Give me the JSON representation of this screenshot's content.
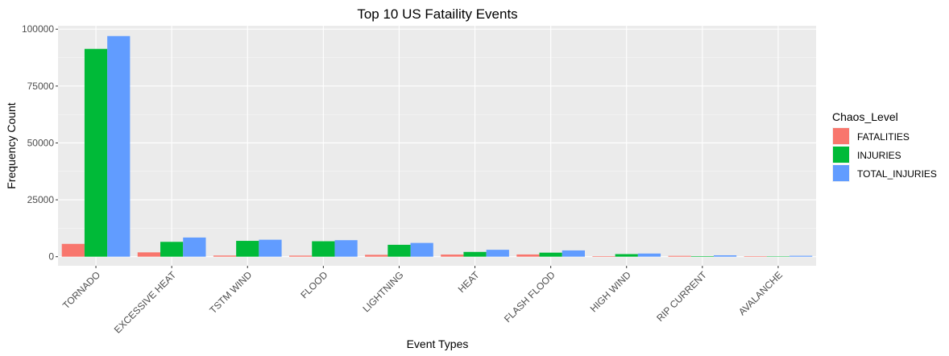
{
  "chart_data": {
    "type": "bar",
    "title": "Top 10 US Fataility Events",
    "xlabel": "Event Types",
    "ylabel": "Frequency Count",
    "ylim": [
      -4000,
      101500
    ],
    "yticks": [
      0,
      25000,
      50000,
      75000,
      100000
    ],
    "ytick_labels": [
      "0",
      "25000",
      "50000",
      "75000",
      "100000"
    ],
    "grid": true,
    "legend": {
      "title": "Chaos_Level",
      "position": "right"
    },
    "categories": [
      "TORNADO",
      "EXCESSIVE HEAT",
      "TSTM WIND",
      "FLOOD",
      "LIGHTNING",
      "HEAT",
      "FLASH FLOOD",
      "HIGH WIND",
      "RIP CURRENT",
      "AVALANCHE"
    ],
    "series": [
      {
        "name": "FATALITIES",
        "color": "#F8766D",
        "values": [
          5633,
          1903,
          504,
          470,
          816,
          937,
          978,
          248,
          368,
          224
        ]
      },
      {
        "name": "INJURIES",
        "color": "#00BA38",
        "values": [
          91346,
          6525,
          6957,
          6789,
          5230,
          2100,
          1777,
          1137,
          232,
          170
        ]
      },
      {
        "name": "TOTAL_INJURIES",
        "color": "#619CFF",
        "values": [
          96979,
          8428,
          7461,
          7259,
          6046,
          3037,
          2755,
          1385,
          600,
          394
        ]
      }
    ]
  }
}
